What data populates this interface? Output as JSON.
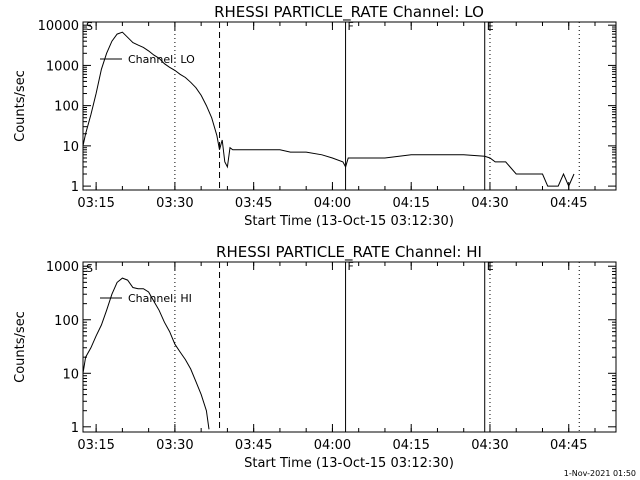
{
  "footer_stamp": "1-Nov-2021 01:50",
  "chart_data": [
    {
      "type": "line",
      "title": "RHESSI PARTICLE_RATE Channel: LO",
      "xlabel": "Start Time (13-Oct-15 03:12:30)",
      "ylabel": "Counts/sec",
      "y_scale": "log",
      "ylim": [
        0.8,
        12000
      ],
      "xlim": [
        "03:12:30",
        "04:54:00"
      ],
      "x_ticks": [
        "03:15",
        "03:30",
        "03:45",
        "04:00",
        "04:15",
        "04:30",
        "04:45"
      ],
      "y_ticks": [
        "1",
        "10",
        "100",
        "1000",
        "10000"
      ],
      "legend": {
        "label": "Channel: LO",
        "position": "top-left"
      },
      "series": [
        {
          "name": "Channel: LO",
          "x": [
            "03:12:30",
            "03:13:00",
            "03:14:00",
            "03:15:00",
            "03:16:00",
            "03:17:00",
            "03:18:00",
            "03:19:00",
            "03:20:00",
            "03:21:00",
            "03:22:00",
            "03:23:00",
            "03:24:00",
            "03:25:00",
            "03:26:00",
            "03:27:00",
            "03:28:00",
            "03:29:00",
            "03:30:00",
            "03:31:00",
            "03:32:00",
            "03:33:00",
            "03:34:00",
            "03:35:00",
            "03:36:00",
            "03:37:00",
            "03:38:00",
            "03:38:30",
            "03:39:00",
            "03:39:30",
            "03:40:00",
            "03:40:30",
            "03:41:00",
            "03:42:00",
            "03:45:00",
            "03:50:00",
            "03:52:00",
            "03:55:00",
            "03:58:00",
            "04:00:00",
            "04:02:00",
            "04:02:30",
            "04:03:00",
            "04:05:00",
            "04:08:00",
            "04:10:00",
            "04:15:00",
            "04:20:00",
            "04:25:00",
            "04:29:00",
            "04:30:00",
            "04:31:00",
            "04:33:00",
            "04:35:00",
            "04:36:00",
            "04:39:00",
            "04:40:00",
            "04:41:00",
            "04:42:00",
            "04:43:00",
            "04:44:00",
            "04:45:00",
            "04:46:00"
          ],
          "y": [
            10,
            20,
            60,
            200,
            800,
            2000,
            4000,
            6000,
            6700,
            5000,
            3700,
            3200,
            2800,
            2300,
            1800,
            1500,
            1100,
            900,
            750,
            600,
            500,
            380,
            280,
            180,
            100,
            50,
            18,
            8,
            14,
            4,
            3,
            9,
            8,
            8,
            8,
            8,
            7,
            7,
            6,
            5,
            4,
            3,
            5,
            5,
            5,
            5,
            6,
            6,
            6,
            5.5,
            5,
            4,
            4,
            2,
            2,
            2,
            2,
            1,
            1,
            1,
            2,
            1,
            2
          ]
        }
      ],
      "event_markers": [
        {
          "time": "03:38:30",
          "style": "dashed",
          "label": ""
        },
        {
          "time": "04:02:30",
          "style": "solid",
          "label": "F"
        },
        {
          "time": "04:29:00",
          "style": "solid",
          "label": "E"
        },
        {
          "time": "03:30:00",
          "style": "dotted",
          "label": ""
        },
        {
          "time": "04:30:00",
          "style": "dotted",
          "label": ""
        },
        {
          "time": "04:47:00",
          "style": "dotted",
          "label": ""
        }
      ],
      "corner_label": "S"
    },
    {
      "type": "line",
      "title": "RHESSI PARTICLE_RATE Channel: HI",
      "xlabel": "Start Time (13-Oct-15 03:12:30)",
      "ylabel": "Counts/sec",
      "y_scale": "log",
      "ylim": [
        0.8,
        1200
      ],
      "xlim": [
        "03:12:30",
        "04:54:00"
      ],
      "x_ticks": [
        "03:15",
        "03:30",
        "03:45",
        "04:00",
        "04:15",
        "04:30",
        "04:45"
      ],
      "y_ticks": [
        "1",
        "10",
        "100",
        "1000"
      ],
      "legend": {
        "label": "Channel: HI",
        "position": "top-left"
      },
      "series": [
        {
          "name": "Channel: HI",
          "x": [
            "03:12:30",
            "03:13:00",
            "03:14:00",
            "03:15:00",
            "03:16:00",
            "03:17:00",
            "03:18:00",
            "03:19:00",
            "03:20:00",
            "03:21:00",
            "03:22:00",
            "03:23:00",
            "03:24:00",
            "03:25:00",
            "03:26:00",
            "03:27:00",
            "03:28:00",
            "03:29:00",
            "03:30:00",
            "03:31:00",
            "03:32:00",
            "03:33:00",
            "03:34:00",
            "03:35:00",
            "03:36:00",
            "03:36:30"
          ],
          "y": [
            10,
            20,
            30,
            50,
            80,
            150,
            300,
            500,
            600,
            550,
            400,
            380,
            380,
            330,
            220,
            150,
            90,
            60,
            35,
            25,
            18,
            12,
            7,
            4,
            2,
            0.9
          ]
        }
      ],
      "event_markers": [
        {
          "time": "03:38:30",
          "style": "dashed",
          "label": ""
        },
        {
          "time": "04:02:30",
          "style": "solid",
          "label": "F"
        },
        {
          "time": "04:29:00",
          "style": "solid",
          "label": "E"
        },
        {
          "time": "03:30:00",
          "style": "dotted",
          "label": ""
        },
        {
          "time": "04:30:00",
          "style": "dotted",
          "label": ""
        },
        {
          "time": "04:47:00",
          "style": "dotted",
          "label": ""
        }
      ],
      "corner_label": "S"
    }
  ]
}
